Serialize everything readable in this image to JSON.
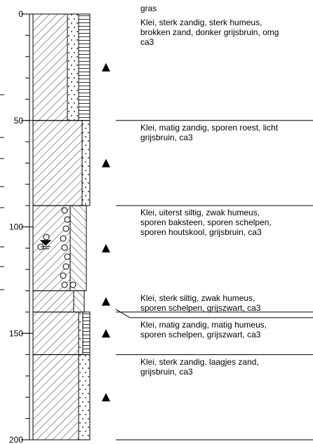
{
  "depth_axis": {
    "ylim": [
      0,
      200
    ],
    "ticks": [
      0,
      50,
      100,
      150,
      200
    ],
    "minor_step": 10
  },
  "surface": "gras",
  "layers": [
    {
      "top": 0,
      "bottom": 50,
      "description": [
        "Klei, sterk zandig, sterk humeus,",
        "brokken zand, donker grijsbruin, omg",
        "ca3"
      ]
    },
    {
      "top": 50,
      "bottom": 90,
      "description": [
        "Klei, matig zandig, sporen roest, licht",
        "grijsbruin, ca3"
      ]
    },
    {
      "top": 90,
      "bottom": 130,
      "description": [
        "Klei, uiterst siltig, zwak humeus,",
        "sporen baksteen, sporen schelpen,",
        "sporen houtskool, grijsbruin, ca3"
      ]
    },
    {
      "top": 130,
      "bottom": 140,
      "description": [
        "Klei, sterk siltig, zwak humeus,",
        "sporen schelpen, grijszwart, ca3"
      ]
    },
    {
      "top": 140,
      "bottom": 160,
      "description": [
        "Klei, matig zandig, matig humeus,",
        "sporen schelpen, grijszwart, ca3"
      ]
    },
    {
      "top": 160,
      "bottom": 200,
      "description": [
        "Klei, sterk zandig, laagjes zand,",
        "grijsbruin, ca3"
      ]
    }
  ],
  "samples": [
    25,
    70,
    110,
    135,
    150,
    180
  ],
  "water_level": 108
}
